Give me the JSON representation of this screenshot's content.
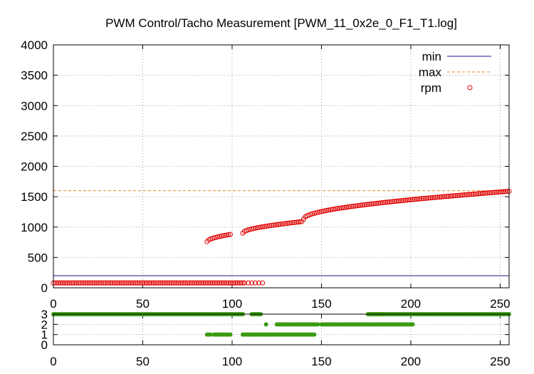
{
  "chart_data": [
    {
      "type": "scatter",
      "title": "PWM Control/Tacho Measurement [PWM_11_0x2e_0_F1_T1.log]",
      "xlabel": "",
      "ylabel": "",
      "xlim": [
        0,
        255
      ],
      "ylim": [
        0,
        4000
      ],
      "xticks": [
        0,
        50,
        100,
        150,
        200,
        250
      ],
      "yticks": [
        0,
        500,
        1000,
        1500,
        2000,
        2500,
        3000,
        3500,
        4000
      ],
      "grid": true,
      "legend_position": "top-right",
      "series": [
        {
          "name": "min",
          "kind": "hline",
          "style": "solid",
          "color": "#1a1a8c",
          "value": 200
        },
        {
          "name": "max",
          "kind": "hline",
          "style": "dashed",
          "color": "#e08a2a",
          "value": 1600
        },
        {
          "name": "rpm",
          "kind": "points",
          "marker": "open-circle",
          "color": "#e00000",
          "segments": [
            {
              "x_from": 0,
              "x_to": 106,
              "y_start": 80,
              "y_end": 80
            },
            {
              "x_from": 107,
              "x_to": 118,
              "step": 2,
              "y_start": 80,
              "y_end": 80
            },
            {
              "x_from": 86,
              "x_to": 99,
              "step": 1,
              "y_start": 760,
              "y_end": 880
            },
            {
              "x_from": 106,
              "x_to": 139,
              "y_start": 900,
              "y_end": 1090
            },
            {
              "x_from": 140,
              "x_to": 255,
              "y_start": 1130,
              "y_end": 1590
            }
          ]
        }
      ]
    },
    {
      "type": "scatter",
      "title": "",
      "xlim": [
        0,
        255
      ],
      "ylim": [
        0,
        3
      ],
      "xticks": [
        0,
        50,
        100,
        150,
        200,
        250
      ],
      "yticks": [
        0,
        1,
        2,
        3
      ],
      "grid": true,
      "series": [
        {
          "name": "",
          "kind": "points",
          "marker": "filled-circle",
          "color": "#3a9a10",
          "segments": [
            {
              "x_from": 0,
              "x_to": 106,
              "value": 3
            },
            {
              "x_from": 176,
              "x_to": 255,
              "value": 3
            },
            {
              "x_from": 111,
              "x_to": 116,
              "step": 1,
              "value": 3
            },
            {
              "x_from": 177,
              "x_to": 185,
              "value": 3
            },
            {
              "x_from": 119,
              "x_to": 119,
              "value": 2
            },
            {
              "x_from": 125,
              "x_to": 148,
              "value": 2
            },
            {
              "x_from": 150,
              "x_to": 201,
              "value": 2
            },
            {
              "x_from": 86,
              "x_to": 88,
              "value": 1
            },
            {
              "x_from": 90,
              "x_to": 99,
              "value": 1
            },
            {
              "x_from": 106,
              "x_to": 146,
              "value": 1
            }
          ]
        }
      ]
    }
  ]
}
